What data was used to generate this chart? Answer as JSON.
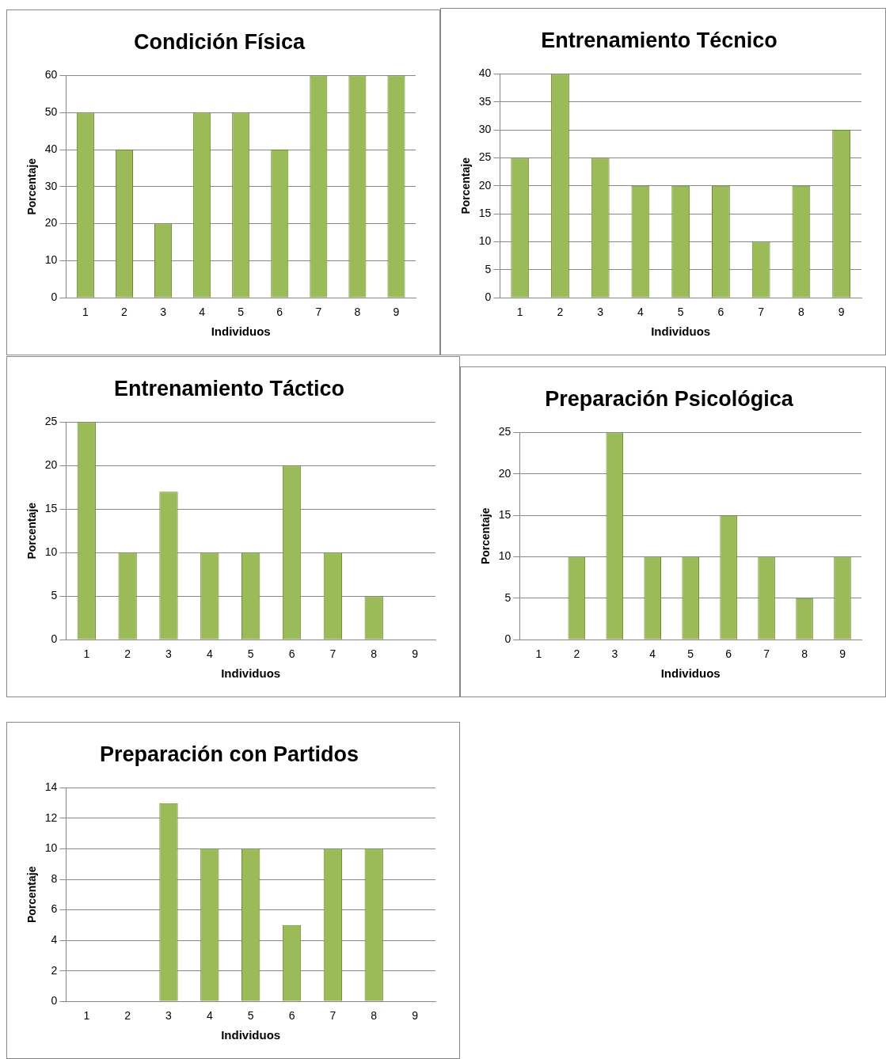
{
  "chart_data": [
    {
      "type": "bar",
      "title": "Condición Física",
      "xlabel": "Individuos",
      "ylabel": "Porcentaje",
      "categories": [
        "1",
        "2",
        "3",
        "4",
        "5",
        "6",
        "7",
        "8",
        "9"
      ],
      "values": [
        50,
        40,
        20,
        50,
        50,
        40,
        60,
        60,
        60
      ],
      "color": "#9bbb59",
      "ylim": [
        0,
        60
      ],
      "yticks": [
        0,
        10,
        20,
        30,
        40,
        50,
        60
      ],
      "grid": "y"
    },
    {
      "type": "bar",
      "title": "Entrenamiento Técnico",
      "xlabel": "Individuos",
      "ylabel": "Porcentaje",
      "categories": [
        "1",
        "2",
        "3",
        "4",
        "5",
        "6",
        "7",
        "8",
        "9"
      ],
      "values": [
        25,
        40,
        25,
        20,
        20,
        20,
        10,
        20,
        30
      ],
      "color": "#9bbb59",
      "ylim": [
        0,
        40
      ],
      "yticks": [
        0,
        5,
        10,
        15,
        20,
        25,
        30,
        35,
        40
      ],
      "grid": "y"
    },
    {
      "type": "bar",
      "title": "Entrenamiento Táctico",
      "xlabel": "Individuos",
      "ylabel": "Porcentaje",
      "categories": [
        "1",
        "2",
        "3",
        "4",
        "5",
        "6",
        "7",
        "8",
        "9"
      ],
      "values": [
        25,
        10,
        17,
        10,
        10,
        20,
        10,
        5,
        0
      ],
      "color": "#9bbb59",
      "ylim": [
        0,
        25
      ],
      "yticks": [
        0,
        5,
        10,
        15,
        20,
        25
      ],
      "grid": "y"
    },
    {
      "type": "bar",
      "title": "Preparación Psicológica",
      "xlabel": "Individuos",
      "ylabel": "Porcentaje",
      "categories": [
        "1",
        "2",
        "3",
        "4",
        "5",
        "6",
        "7",
        "8",
        "9"
      ],
      "values": [
        0,
        10,
        25,
        10,
        10,
        15,
        10,
        5,
        10
      ],
      "color": "#9bbb59",
      "ylim": [
        0,
        25
      ],
      "yticks": [
        0,
        5,
        10,
        15,
        20,
        25
      ],
      "grid": "y"
    },
    {
      "type": "bar",
      "title": "Preparación con Partidos",
      "xlabel": "Individuos",
      "ylabel": "Porcentaje",
      "categories": [
        "1",
        "2",
        "3",
        "4",
        "5",
        "6",
        "7",
        "8",
        "9"
      ],
      "values": [
        0,
        0,
        13,
        10,
        10,
        5,
        10,
        10,
        0
      ],
      "color": "#9bbb59",
      "ylim": [
        0,
        14
      ],
      "yticks": [
        0,
        2,
        4,
        6,
        8,
        10,
        12,
        14
      ],
      "grid": "y"
    }
  ]
}
